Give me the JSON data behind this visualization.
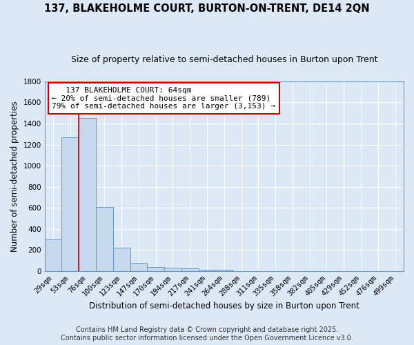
{
  "title": "137, BLAKEHOLME COURT, BURTON-ON-TRENT, DE14 2QN",
  "subtitle": "Size of property relative to semi-detached houses in Burton upon Trent",
  "xlabel": "Distribution of semi-detached houses by size in Burton upon Trent",
  "ylabel": "Number of semi-detached properties",
  "categories": [
    "29sqm",
    "53sqm",
    "76sqm",
    "100sqm",
    "123sqm",
    "147sqm",
    "170sqm",
    "194sqm",
    "217sqm",
    "241sqm",
    "264sqm",
    "288sqm",
    "311sqm",
    "335sqm",
    "358sqm",
    "382sqm",
    "405sqm",
    "429sqm",
    "452sqm",
    "476sqm",
    "499sqm"
  ],
  "values": [
    300,
    1270,
    1450,
    610,
    225,
    80,
    40,
    35,
    28,
    15,
    10,
    0,
    0,
    0,
    0,
    0,
    0,
    0,
    0,
    0,
    0
  ],
  "bar_color": "#c5d8ee",
  "bar_edge_color": "#6699cc",
  "background_color": "#dce8f5",
  "plot_bg_color": "#dce8f5",
  "grid_color": "#ffffff",
  "marker_color": "#cc0000",
  "marker_label": "137 BLAKEHOLME COURT: 64sqm",
  "pct_smaller": 20,
  "count_smaller": 789,
  "pct_larger": 79,
  "count_larger": 3153,
  "ylim": [
    0,
    1800
  ],
  "yticks": [
    0,
    200,
    400,
    600,
    800,
    1000,
    1200,
    1400,
    1600,
    1800
  ],
  "footer1": "Contains HM Land Registry data © Crown copyright and database right 2025.",
  "footer2": "Contains public sector information licensed under the Open Government Licence v3.0.",
  "title_fontsize": 10.5,
  "subtitle_fontsize": 9,
  "axis_label_fontsize": 8.5,
  "tick_fontsize": 7.5,
  "footer_fontsize": 7,
  "annot_fontsize": 8
}
